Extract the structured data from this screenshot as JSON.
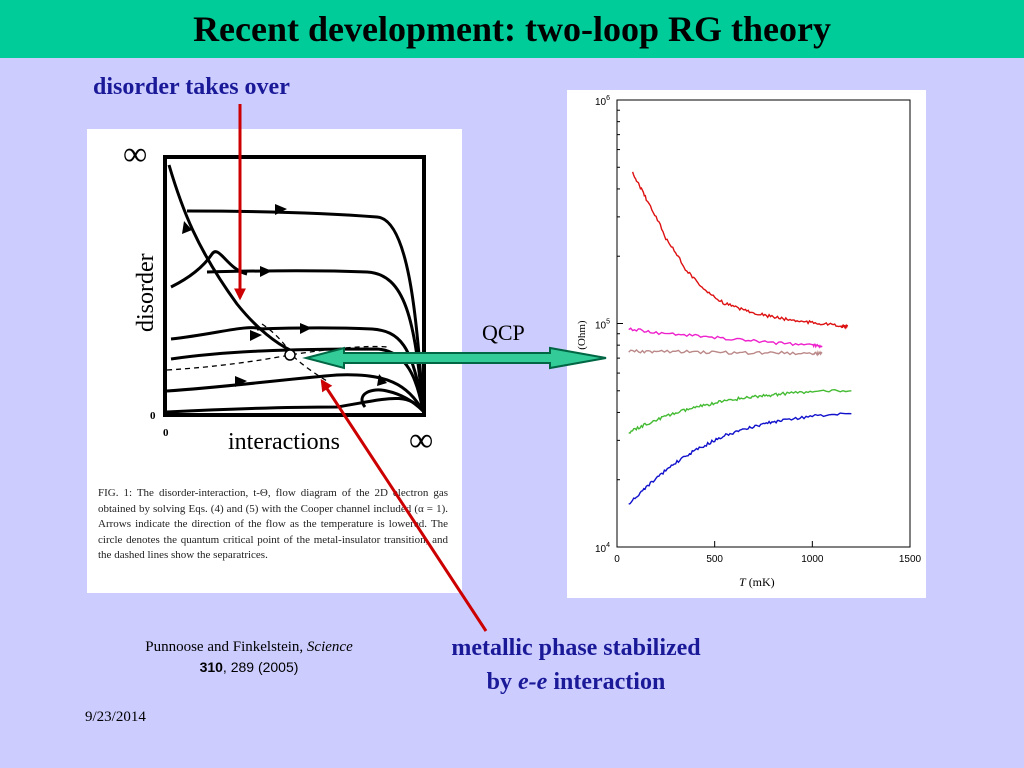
{
  "slide": {
    "title": "Recent development: two-loop RG theory",
    "callout_top": "disorder takes over",
    "callout_bottom_line1": "metallic phase stabilized",
    "callout_bottom_line2_prefix": "by ",
    "callout_bottom_line2_italic": "e-e",
    "callout_bottom_line2_suffix": " interaction",
    "qcp_label": "QCP",
    "reference_authors": "Punnoose and Finkelstein, ",
    "reference_journal": "Science",
    "reference_volume": "310",
    "reference_rest": ", 289 (2005)",
    "date": "9/23/2014",
    "colors": {
      "header": "#00cc99",
      "background": "#ccccff",
      "callout_text": "#1a1a99",
      "arrow": "#cc0000",
      "qcp_arrow_fill": "#33cc99",
      "qcp_arrow_stroke": "#006644"
    }
  },
  "flow_diagram": {
    "infinity_top": "∞",
    "infinity_right": "∞",
    "y_axis_label": "disorder",
    "x_axis_label": "interactions",
    "origin_y_label": "0",
    "origin_x_label": "0",
    "caption": "FIG. 1: The disorder-interaction, t-Θ, flow diagram of the 2D electron gas obtained by solving Eqs. (4) and (5) with the Cooper channel included (α = 1). Arrows indicate the direction of the flow as the temperature is lowered. The circle denotes the quantum critical point of the metal-insulator transition, and the dashed lines show the separatrices."
  },
  "chart_data": {
    "type": "line",
    "xlabel_italic": "T",
    "xlabel_rest": " (mK)",
    "ylabel": "ρ (Ohm)",
    "xlim": [
      0,
      1500
    ],
    "ylim": [
      10000,
      1000000
    ],
    "y_scale": "log",
    "x_ticks": [
      "0",
      "500",
      "1000",
      "1500"
    ],
    "y_ticks": [
      {
        "value": 10000,
        "base": "10",
        "exp": "4"
      },
      {
        "value": 100000,
        "base": "10",
        "exp": "5"
      },
      {
        "value": 1000000,
        "base": "10",
        "exp": "6"
      }
    ],
    "series": [
      {
        "color": "#dd1111",
        "x": [
          80,
          150,
          250,
          350,
          450,
          550,
          650,
          750,
          850,
          950,
          1050,
          1150,
          1180
        ],
        "y": [
          470000,
          360000,
          240000,
          175000,
          140000,
          123000,
          115000,
          109000,
          105000,
          102000,
          100000,
          97000,
          97000
        ]
      },
      {
        "color": "#ee22cc",
        "x": [
          60,
          200,
          400,
          600,
          800,
          1000,
          1050
        ],
        "y": [
          95000,
          91000,
          88000,
          85000,
          82000,
          80000,
          79500
        ]
      },
      {
        "color": "#bb8888",
        "x": [
          60,
          200,
          400,
          600,
          800,
          1000,
          1050
        ],
        "y": [
          75000,
          75000,
          74500,
          74000,
          74000,
          73500,
          73500
        ]
      },
      {
        "color": "#44bb33",
        "x": [
          60,
          150,
          250,
          350,
          450,
          550,
          650,
          750,
          850,
          1000,
          1200
        ],
        "y": [
          32500,
          35500,
          38500,
          41000,
          43000,
          45000,
          46500,
          47500,
          48500,
          49500,
          50000
        ]
      },
      {
        "color": "#1111cc",
        "x": [
          60,
          150,
          250,
          350,
          450,
          550,
          650,
          750,
          850,
          1000,
          1200
        ],
        "y": [
          15500,
          18500,
          22000,
          25500,
          28500,
          31500,
          33500,
          35500,
          37000,
          38500,
          39500
        ]
      }
    ]
  }
}
